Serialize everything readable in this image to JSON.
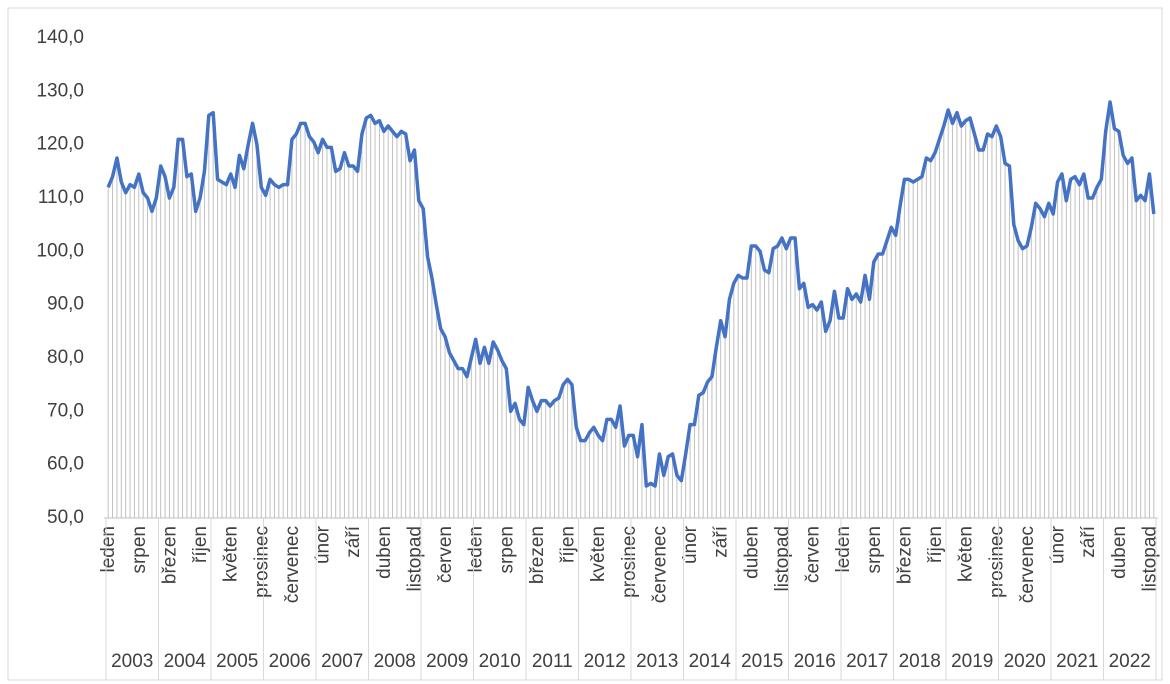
{
  "chart_data": {
    "type": "line",
    "categories": [
      "leden",
      null,
      null,
      null,
      null,
      null,
      null,
      "srpen",
      null,
      null,
      null,
      null,
      null,
      null,
      "březen",
      null,
      null,
      null,
      null,
      null,
      null,
      "říjen",
      null,
      null,
      null,
      null,
      null,
      null,
      "květen",
      null,
      null,
      null,
      null,
      null,
      null,
      "prosinec",
      null,
      null,
      null,
      null,
      null,
      null,
      "červenec",
      null,
      null,
      null,
      null,
      null,
      null,
      "únor",
      null,
      null,
      null,
      null,
      null,
      null,
      "září",
      null,
      null,
      null,
      null,
      null,
      null,
      "duben",
      null,
      null,
      null,
      null,
      null,
      null,
      "listopad",
      null,
      null,
      null,
      null,
      null,
      null,
      "červen",
      null,
      null,
      null,
      null,
      null,
      null,
      "leden",
      null,
      null,
      null,
      null,
      null,
      null,
      "srpen",
      null,
      null,
      null,
      null,
      null,
      null,
      "březen",
      null,
      null,
      null,
      null,
      null,
      null,
      "říjen",
      null,
      null,
      null,
      null,
      null,
      null,
      "květen",
      null,
      null,
      null,
      null,
      null,
      null,
      "prosinec",
      null,
      null,
      null,
      null,
      null,
      null,
      "červenec",
      null,
      null,
      null,
      null,
      null,
      null,
      "únor",
      null,
      null,
      null,
      null,
      null,
      null,
      "září",
      null,
      null,
      null,
      null,
      null,
      null,
      "duben",
      null,
      null,
      null,
      null,
      null,
      null,
      "listopad",
      null,
      null,
      null,
      null,
      null,
      null,
      "červen",
      null,
      null,
      null,
      null,
      null,
      null,
      "leden",
      null,
      null,
      null,
      null,
      null,
      null,
      "srpen",
      null,
      null,
      null,
      null,
      null,
      null,
      "březen",
      null,
      null,
      null,
      null,
      null,
      null,
      "říjen",
      null,
      null,
      null,
      null,
      null,
      null,
      "květen",
      null,
      null,
      null,
      null,
      null,
      null,
      "prosinec",
      null,
      null,
      null,
      null,
      null,
      null,
      "červenec",
      null,
      null,
      null,
      null,
      null,
      null,
      "únor",
      null,
      null,
      null,
      null,
      null,
      null,
      "září",
      null,
      null,
      null,
      null,
      null,
      null,
      "duben",
      null,
      null,
      null,
      null,
      null,
      null,
      "listopad",
      null
    ],
    "years": [
      "2003",
      "2004",
      "2005",
      "2006",
      "2007",
      "2008",
      "2009",
      "2010",
      "2011",
      "2012",
      "2013",
      "2014",
      "2015",
      "2016",
      "2017",
      "2018",
      "2019",
      "2020",
      "2021",
      "2022"
    ],
    "series": [
      {
        "color": "#4472c4",
        "values": [
          112,
          114,
          117.5,
          113,
          111,
          112.5,
          112,
          114.5,
          111,
          110,
          107.5,
          110,
          116,
          114,
          110,
          112,
          121,
          121,
          114,
          114.5,
          107.5,
          110,
          115,
          125.5,
          126,
          113.5,
          113,
          112.5,
          114.5,
          112,
          118,
          115.5,
          120,
          124,
          120,
          112,
          110.5,
          113.5,
          112.5,
          112,
          112.5,
          112.5,
          121,
          122,
          124,
          124,
          121.5,
          120.5,
          118.5,
          121,
          119.5,
          119.5,
          115,
          115.5,
          118.5,
          116,
          116,
          115,
          122,
          125,
          125.5,
          124,
          124.5,
          122.5,
          123.5,
          122.5,
          121.5,
          122.5,
          122,
          117,
          119,
          109.5,
          108,
          99,
          95,
          90,
          85.5,
          84,
          81,
          79.5,
          78,
          78,
          76.5,
          80,
          83.5,
          79,
          82,
          79,
          83,
          81.5,
          79.5,
          78,
          70,
          71.5,
          68.5,
          67.5,
          74.5,
          72,
          70,
          72,
          72,
          71,
          72,
          72.5,
          75,
          76,
          75,
          67,
          64.5,
          64.5,
          66,
          67,
          65.5,
          64.5,
          68.5,
          68.5,
          67,
          71,
          63.5,
          65.5,
          65.5,
          61.5,
          67.5,
          56,
          56.5,
          56,
          62,
          58,
          61.5,
          62,
          58,
          57,
          62,
          67.5,
          67.5,
          73,
          73.5,
          75.5,
          76.5,
          82,
          87,
          84,
          91,
          94,
          95.5,
          95,
          95,
          101,
          101,
          100,
          96.5,
          96,
          100.5,
          101,
          102.5,
          100.5,
          102.5,
          102.5,
          93,
          94,
          89.5,
          90,
          89,
          90.5,
          85,
          87,
          92.5,
          87.5,
          87.5,
          93,
          91,
          92,
          90.5,
          95.5,
          91,
          98,
          99.5,
          99.5,
          102,
          104.5,
          103,
          108.5,
          113.5,
          113.5,
          113,
          113.5,
          114,
          117.5,
          117,
          118.5,
          121,
          123.5,
          126.5,
          124,
          126,
          123.5,
          124.5,
          125,
          122,
          119,
          119,
          122,
          121.5,
          123.5,
          121.5,
          116.5,
          116,
          105,
          102,
          100.5,
          101,
          104.5,
          109,
          108,
          106.5,
          109,
          107,
          113,
          114.5,
          109.5,
          113.5,
          114,
          112.5,
          114.5,
          110,
          110,
          112,
          113.5,
          122.5,
          128,
          123,
          122.5,
          118,
          116.5,
          117.5,
          109.5,
          110.5,
          109.5,
          114.5,
          107
        ]
      }
    ],
    "ylim": [
      50,
      140
    ],
    "yticks": [
      {
        "value": 50,
        "label": "50,0"
      },
      {
        "value": 60,
        "label": "60,0"
      },
      {
        "value": 70,
        "label": "70,0"
      },
      {
        "value": 80,
        "label": "80,0"
      },
      {
        "value": 90,
        "label": "90,0"
      },
      {
        "value": 100,
        "label": "100,0"
      },
      {
        "value": 110,
        "label": "110,0"
      },
      {
        "value": 120,
        "label": "120,0"
      },
      {
        "value": 130,
        "label": "130,0"
      },
      {
        "value": 140,
        "label": "140,0"
      }
    ],
    "drop_lines": true,
    "drop_line_color": "#c0c0c0"
  }
}
